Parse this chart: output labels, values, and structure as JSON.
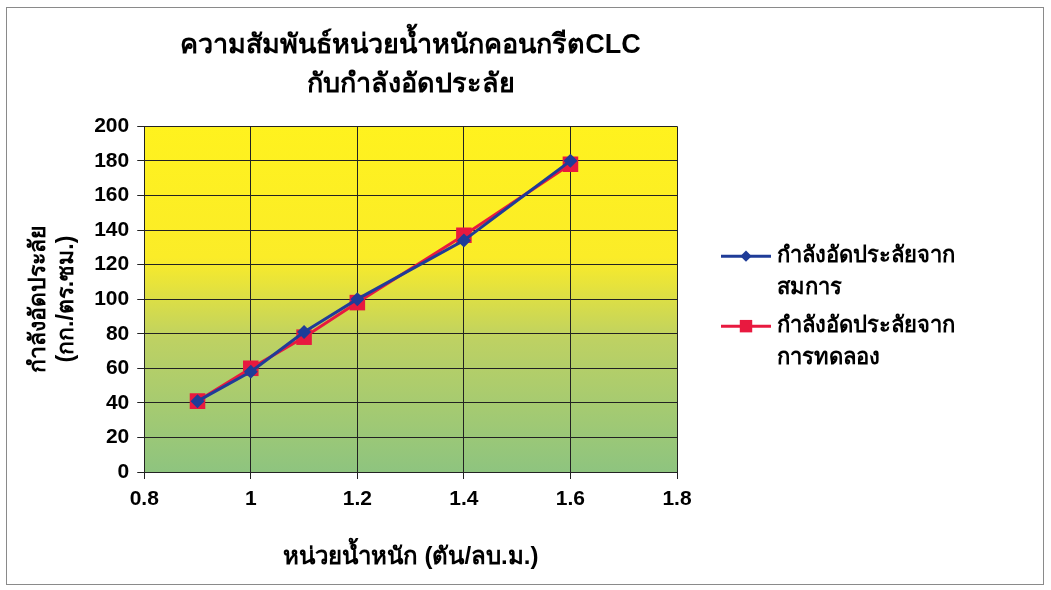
{
  "chart_data": {
    "type": "line",
    "title": "ความสัมพันธ์หน่วยน้ำหนักคอนกรีตCLC\nกับกำลังอัดประลัย",
    "xlabel": "หน่วยน้ำหนัก (ตัน/ลบ.ม.)",
    "ylabel": "กำลังอัดประลัย\n(กก./ตร.ซม.)",
    "x": [
      0.9,
      1,
      1.1,
      1.2,
      1.4,
      1.6
    ],
    "series": [
      {
        "name": "กำลังอัดประลัยจากสมการ",
        "color": "#1f3c98",
        "marker": "diamond",
        "values": [
          41,
          58,
          81,
          100,
          134,
          180
        ]
      },
      {
        "name": "กำลังอัดประลัยจากการทดลอง",
        "color": "#e8193f",
        "marker": "square",
        "values": [
          41,
          60,
          78,
          98,
          137,
          178
        ]
      }
    ],
    "xlim": [
      0.8,
      1.8
    ],
    "xticks": [
      0.8,
      1,
      1.2,
      1.4,
      1.6,
      1.8
    ],
    "ylim": [
      0,
      200
    ],
    "yticks": [
      0,
      20,
      40,
      60,
      80,
      100,
      120,
      140,
      160,
      180,
      200
    ],
    "grid": true,
    "legend": "right"
  }
}
